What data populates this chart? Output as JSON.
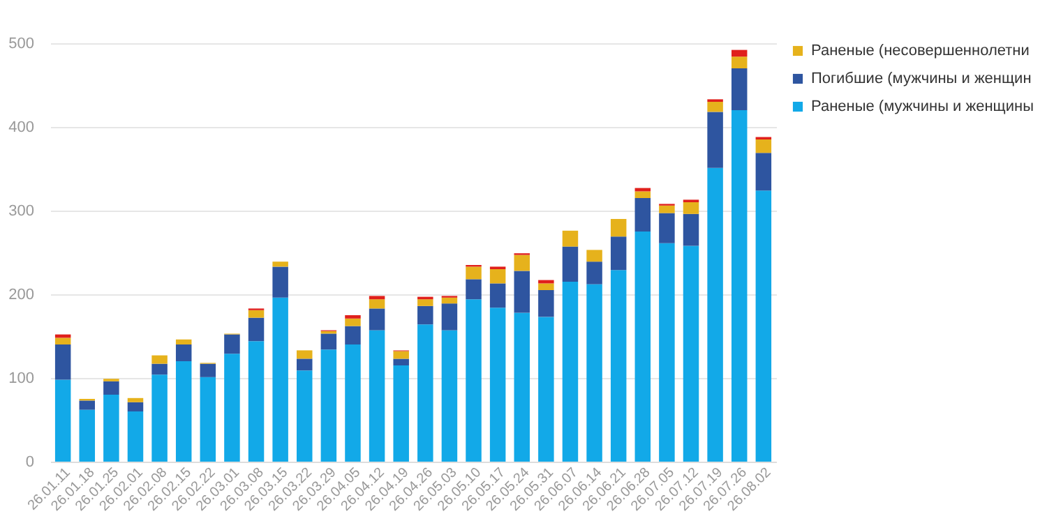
{
  "chart_data": {
    "type": "bar",
    "stacked": true,
    "categories": [
      "26.01.11",
      "26.01.18",
      "26.01.25",
      "26.02.01",
      "26.02.08",
      "26.02.15",
      "26.02.22",
      "26.03.01",
      "26.03.08",
      "26.03.15",
      "26.03.22",
      "26.03.29",
      "26.04.05",
      "26.04.12",
      "26.04.19",
      "26.04.26",
      "26.05.03",
      "26.05.10",
      "26.05.17",
      "26.05.24",
      "26.05.31",
      "26.06.07",
      "26.06.14",
      "26.06.21",
      "26.06.28",
      "26.07.05",
      "26.07.12",
      "26.07.19",
      "26.07.26",
      "26.08.02"
    ],
    "series": [
      {
        "name": "Раненые (мужчины и женщины",
        "color": "#12a9e8",
        "values": [
          98,
          62,
          80,
          60,
          104,
          120,
          101,
          129,
          144,
          196,
          109,
          134,
          140,
          157,
          115,
          164,
          157,
          194,
          184,
          178,
          173,
          215,
          212,
          229,
          275,
          261,
          258,
          351,
          420,
          324
        ]
      },
      {
        "name": "Погибшие (мужчины и женщин",
        "color": "#2e55a0",
        "values": [
          42,
          11,
          16,
          11,
          13,
          20,
          16,
          23,
          28,
          37,
          14,
          19,
          22,
          26,
          8,
          22,
          32,
          24,
          29,
          50,
          32,
          42,
          27,
          40,
          40,
          36,
          38,
          67,
          50,
          45
        ]
      },
      {
        "name": "Раненые (несовершеннолетни",
        "color": "#e6b21c",
        "values": [
          8,
          2,
          3,
          5,
          10,
          6,
          1,
          1,
          9,
          6,
          10,
          3,
          9,
          11,
          9,
          8,
          7,
          15,
          17,
          19,
          8,
          19,
          14,
          21,
          8,
          9,
          14,
          12,
          14,
          16
        ]
      },
      {
        "color": "#e0201c",
        "values": [
          4,
          0,
          0,
          0,
          0,
          0,
          0,
          0,
          2,
          0,
          0,
          1,
          4,
          4,
          1,
          3,
          2,
          2,
          3,
          2,
          4,
          0,
          0,
          0,
          4,
          2,
          3,
          3,
          8,
          3
        ]
      }
    ],
    "ylim": [
      0,
      500
    ],
    "yticks": [
      0,
      100,
      200,
      300,
      400,
      500
    ],
    "grid": "y",
    "legend": "top right"
  }
}
